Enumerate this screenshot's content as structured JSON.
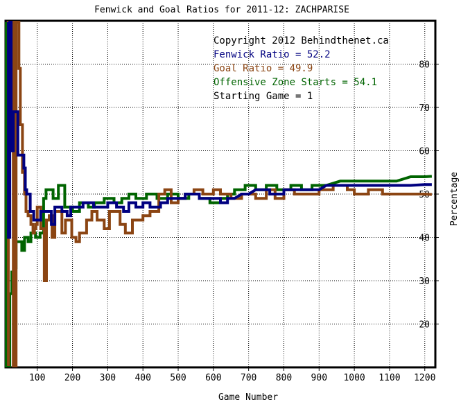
{
  "chart_data": {
    "type": "line",
    "title": "Fenwick and Goal Ratios for 2011-12: ZACHPARISE",
    "xlabel": "Game Number",
    "ylabel": "Percentage",
    "xlim": [
      10,
      1230
    ],
    "ylim": [
      10,
      90
    ],
    "xticks": [
      100,
      200,
      300,
      400,
      500,
      600,
      700,
      800,
      900,
      1000,
      1100,
      1200
    ],
    "yticks": [
      20,
      30,
      40,
      50,
      60,
      70,
      80
    ],
    "grid": true,
    "legend_position": "top-right",
    "annotations": {
      "copyright": "Copyright 2012 Behindthenet.ca",
      "starting_game": "Starting Game = 1"
    },
    "series": [
      {
        "name": "Fenwick Ratio = 52.2",
        "color": "#000080",
        "points": [
          [
            18,
            90
          ],
          [
            18,
            40
          ],
          [
            22,
            40
          ],
          [
            22,
            90
          ],
          [
            26,
            90
          ],
          [
            26,
            60
          ],
          [
            32,
            60
          ],
          [
            32,
            69
          ],
          [
            45,
            69
          ],
          [
            45,
            59
          ],
          [
            55,
            59
          ],
          [
            62,
            59
          ],
          [
            62,
            56
          ],
          [
            66,
            56
          ],
          [
            66,
            51
          ],
          [
            70,
            51
          ],
          [
            70,
            50
          ],
          [
            80,
            50
          ],
          [
            80,
            46
          ],
          [
            90,
            46
          ],
          [
            90,
            44
          ],
          [
            100,
            44
          ],
          [
            110,
            44
          ],
          [
            110,
            46
          ],
          [
            140,
            46
          ],
          [
            140,
            43
          ],
          [
            150,
            43
          ],
          [
            150,
            47
          ],
          [
            170,
            47
          ],
          [
            170,
            46
          ],
          [
            185,
            46
          ],
          [
            185,
            45
          ],
          [
            195,
            45
          ],
          [
            195,
            47
          ],
          [
            230,
            47
          ],
          [
            230,
            48
          ],
          [
            260,
            48
          ],
          [
            260,
            47
          ],
          [
            300,
            47
          ],
          [
            300,
            48
          ],
          [
            325,
            48
          ],
          [
            325,
            47
          ],
          [
            345,
            47
          ],
          [
            345,
            46
          ],
          [
            360,
            46
          ],
          [
            360,
            48
          ],
          [
            380,
            48
          ],
          [
            380,
            47
          ],
          [
            400,
            47
          ],
          [
            400,
            48
          ],
          [
            420,
            48
          ],
          [
            420,
            47
          ],
          [
            450,
            47
          ],
          [
            450,
            48
          ],
          [
            470,
            48
          ],
          [
            470,
            49
          ],
          [
            500,
            49
          ],
          [
            520,
            49
          ],
          [
            520,
            50
          ],
          [
            540,
            50
          ],
          [
            560,
            50
          ],
          [
            560,
            49
          ],
          [
            590,
            49
          ],
          [
            620,
            49
          ],
          [
            620,
            48
          ],
          [
            640,
            48
          ],
          [
            640,
            49
          ],
          [
            660,
            49
          ],
          [
            680,
            50
          ],
          [
            700,
            50
          ],
          [
            720,
            51
          ],
          [
            760,
            51
          ],
          [
            760,
            50
          ],
          [
            800,
            50
          ],
          [
            800,
            51
          ],
          [
            850,
            51
          ],
          [
            860,
            51
          ],
          [
            900,
            51
          ],
          [
            920,
            52
          ],
          [
            960,
            52
          ],
          [
            1000,
            52
          ],
          [
            1040,
            52
          ],
          [
            1080,
            52
          ],
          [
            1120,
            52
          ],
          [
            1160,
            52
          ],
          [
            1200,
            52.2
          ],
          [
            1220,
            52.2
          ]
        ]
      },
      {
        "name": "Goal Ratio = 49.9",
        "color": "#8B4513",
        "points": [
          [
            18,
            0
          ],
          [
            18,
            90
          ],
          [
            32,
            90
          ],
          [
            32,
            10
          ],
          [
            36,
            10
          ],
          [
            40,
            10
          ],
          [
            40,
            90
          ],
          [
            48,
            90
          ],
          [
            48,
            79
          ],
          [
            52,
            79
          ],
          [
            52,
            66
          ],
          [
            58,
            66
          ],
          [
            58,
            55
          ],
          [
            64,
            55
          ],
          [
            64,
            50
          ],
          [
            68,
            50
          ],
          [
            68,
            46
          ],
          [
            74,
            46
          ],
          [
            74,
            45
          ],
          [
            82,
            45
          ],
          [
            82,
            43
          ],
          [
            88,
            43
          ],
          [
            88,
            41
          ],
          [
            92,
            41
          ],
          [
            92,
            42
          ],
          [
            96,
            42
          ],
          [
            96,
            43
          ],
          [
            100,
            43
          ],
          [
            100,
            47
          ],
          [
            110,
            47
          ],
          [
            110,
            42
          ],
          [
            120,
            42
          ],
          [
            120,
            30
          ],
          [
            126,
            30
          ],
          [
            126,
            44
          ],
          [
            134,
            44
          ],
          [
            134,
            45
          ],
          [
            142,
            45
          ],
          [
            142,
            40
          ],
          [
            150,
            40
          ],
          [
            150,
            46
          ],
          [
            170,
            46
          ],
          [
            170,
            41
          ],
          [
            180,
            41
          ],
          [
            180,
            44
          ],
          [
            198,
            44
          ],
          [
            198,
            40
          ],
          [
            210,
            40
          ],
          [
            210,
            39
          ],
          [
            220,
            39
          ],
          [
            220,
            41
          ],
          [
            240,
            41
          ],
          [
            240,
            44
          ],
          [
            255,
            44
          ],
          [
            255,
            46
          ],
          [
            270,
            46
          ],
          [
            270,
            44
          ],
          [
            290,
            44
          ],
          [
            290,
            42
          ],
          [
            305,
            42
          ],
          [
            305,
            46
          ],
          [
            335,
            46
          ],
          [
            335,
            43
          ],
          [
            350,
            43
          ],
          [
            350,
            41
          ],
          [
            370,
            41
          ],
          [
            370,
            44
          ],
          [
            400,
            44
          ],
          [
            400,
            45
          ],
          [
            420,
            45
          ],
          [
            420,
            46
          ],
          [
            445,
            46
          ],
          [
            445,
            50
          ],
          [
            462,
            50
          ],
          [
            462,
            51
          ],
          [
            480,
            51
          ],
          [
            480,
            48
          ],
          [
            500,
            48
          ],
          [
            500,
            49
          ],
          [
            520,
            49
          ],
          [
            520,
            50
          ],
          [
            545,
            50
          ],
          [
            545,
            51
          ],
          [
            570,
            51
          ],
          [
            570,
            50
          ],
          [
            600,
            50
          ],
          [
            600,
            51
          ],
          [
            620,
            51
          ],
          [
            620,
            50
          ],
          [
            650,
            50
          ],
          [
            650,
            49
          ],
          [
            680,
            49
          ],
          [
            680,
            50
          ],
          [
            720,
            50
          ],
          [
            720,
            49
          ],
          [
            750,
            49
          ],
          [
            750,
            51
          ],
          [
            775,
            51
          ],
          [
            775,
            49
          ],
          [
            800,
            49
          ],
          [
            800,
            51
          ],
          [
            830,
            51
          ],
          [
            830,
            50
          ],
          [
            870,
            50
          ],
          [
            870,
            50
          ],
          [
            900,
            50
          ],
          [
            900,
            51
          ],
          [
            940,
            51
          ],
          [
            940,
            52
          ],
          [
            980,
            52
          ],
          [
            980,
            51
          ],
          [
            1000,
            51
          ],
          [
            1000,
            50
          ],
          [
            1040,
            50
          ],
          [
            1040,
            51
          ],
          [
            1080,
            51
          ],
          [
            1080,
            50
          ],
          [
            1120,
            50
          ],
          [
            1160,
            50
          ],
          [
            1200,
            50
          ],
          [
            1220,
            49.9
          ]
        ]
      },
      {
        "name": "Offensive Zone Starts = 54.1",
        "color": "#006400",
        "points": [
          [
            12,
            90
          ],
          [
            12,
            10
          ],
          [
            22,
            10
          ],
          [
            22,
            27
          ],
          [
            28,
            27
          ],
          [
            28,
            32
          ],
          [
            34,
            32
          ],
          [
            34,
            33
          ],
          [
            40,
            33
          ],
          [
            40,
            39
          ],
          [
            56,
            39
          ],
          [
            56,
            37
          ],
          [
            64,
            37
          ],
          [
            64,
            40
          ],
          [
            74,
            40
          ],
          [
            74,
            39
          ],
          [
            82,
            39
          ],
          [
            82,
            41
          ],
          [
            95,
            41
          ],
          [
            95,
            40
          ],
          [
            108,
            40
          ],
          [
            108,
            41
          ],
          [
            118,
            41
          ],
          [
            118,
            49
          ],
          [
            125,
            49
          ],
          [
            125,
            51
          ],
          [
            145,
            51
          ],
          [
            145,
            49
          ],
          [
            160,
            49
          ],
          [
            160,
            52
          ],
          [
            178,
            52
          ],
          [
            178,
            47
          ],
          [
            200,
            47
          ],
          [
            200,
            46
          ],
          [
            220,
            46
          ],
          [
            220,
            48
          ],
          [
            245,
            48
          ],
          [
            245,
            47
          ],
          [
            262,
            47
          ],
          [
            262,
            48
          ],
          [
            290,
            48
          ],
          [
            290,
            49
          ],
          [
            318,
            49
          ],
          [
            318,
            48
          ],
          [
            340,
            48
          ],
          [
            340,
            49
          ],
          [
            360,
            49
          ],
          [
            360,
            50
          ],
          [
            380,
            50
          ],
          [
            380,
            49
          ],
          [
            410,
            49
          ],
          [
            410,
            50
          ],
          [
            440,
            50
          ],
          [
            440,
            49
          ],
          [
            470,
            49
          ],
          [
            470,
            50
          ],
          [
            500,
            50
          ],
          [
            500,
            49
          ],
          [
            530,
            49
          ],
          [
            530,
            50
          ],
          [
            560,
            50
          ],
          [
            560,
            49
          ],
          [
            590,
            49
          ],
          [
            590,
            48
          ],
          [
            620,
            48
          ],
          [
            620,
            49
          ],
          [
            640,
            49
          ],
          [
            640,
            50
          ],
          [
            660,
            50
          ],
          [
            660,
            51
          ],
          [
            690,
            51
          ],
          [
            690,
            52
          ],
          [
            720,
            52
          ],
          [
            720,
            51
          ],
          [
            750,
            51
          ],
          [
            750,
            52
          ],
          [
            780,
            52
          ],
          [
            780,
            51
          ],
          [
            820,
            51
          ],
          [
            820,
            52
          ],
          [
            850,
            52
          ],
          [
            850,
            51
          ],
          [
            880,
            51
          ],
          [
            880,
            52
          ],
          [
            920,
            52
          ],
          [
            960,
            53
          ],
          [
            1000,
            53
          ],
          [
            1040,
            53
          ],
          [
            1080,
            53
          ],
          [
            1120,
            53
          ],
          [
            1160,
            54
          ],
          [
            1200,
            54
          ],
          [
            1220,
            54.1
          ]
        ]
      }
    ]
  }
}
